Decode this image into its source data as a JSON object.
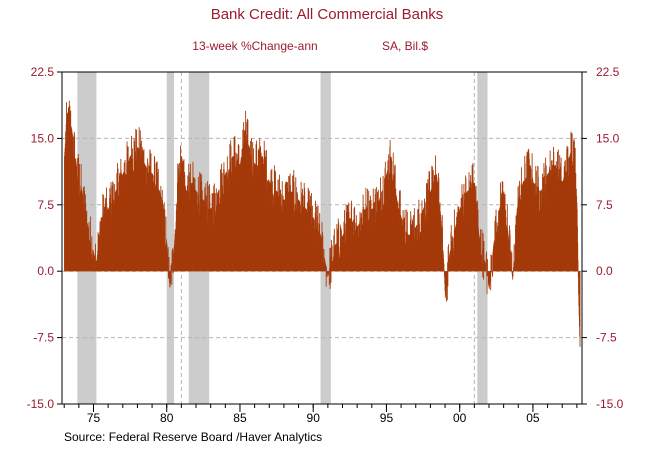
{
  "chart_data": {
    "type": "bar",
    "title": "Bank Credit: All Commercial Banks",
    "subtitle_left": "13-week %Change-ann",
    "subtitle_right": "SA, Bil.$",
    "source": "Source:  Federal Reserve Board /Haver Analytics",
    "ylim": [
      -15,
      22.5
    ],
    "xlim": [
      1972.85,
      2008.35
    ],
    "y_ticks": [
      22.5,
      15.0,
      7.5,
      0.0,
      -7.5,
      -15.0
    ],
    "y_tick_labels_left": [
      "22.5",
      "15.0",
      "7.5",
      "0.0",
      "-7.5",
      "-15.0"
    ],
    "y_tick_labels_right": [
      "22.5",
      "15.0",
      "7.5",
      "0.0",
      "-7.5",
      "-15.0"
    ],
    "x_ticks": [
      1975,
      1980,
      1985,
      1990,
      1995,
      2000,
      2005
    ],
    "x_tick_labels": [
      "75",
      "80",
      "85",
      "90",
      "95",
      "00",
      "05"
    ],
    "grid": "dashed horizontal at y ticks, dashed vertical at 1981 and 2001",
    "bar_color": "#a53a0a",
    "recession_color": "#cccccc",
    "recessions": [
      [
        1973.9,
        1975.2
      ],
      [
        1980.0,
        1980.5
      ],
      [
        1981.5,
        1982.9
      ],
      [
        1990.5,
        1991.2
      ],
      [
        2001.2,
        2001.9
      ]
    ],
    "series": [
      {
        "anchors": [
          [
            1973.0,
            13
          ],
          [
            1973.2,
            18
          ],
          [
            1973.5,
            16
          ],
          [
            1973.8,
            12
          ],
          [
            1974.2,
            9
          ],
          [
            1974.6,
            5
          ],
          [
            1975.0,
            2
          ],
          [
            1975.2,
            1
          ],
          [
            1975.5,
            6
          ],
          [
            1976.0,
            7
          ],
          [
            1976.5,
            9
          ],
          [
            1977.0,
            11
          ],
          [
            1977.5,
            13
          ],
          [
            1978.0,
            14
          ],
          [
            1978.5,
            12
          ],
          [
            1979.0,
            11
          ],
          [
            1979.5,
            9
          ],
          [
            1980.0,
            3
          ],
          [
            1980.2,
            -2
          ],
          [
            1980.5,
            3
          ],
          [
            1980.8,
            12
          ],
          [
            1981.0,
            13
          ],
          [
            1981.3,
            9
          ],
          [
            1981.7,
            10
          ],
          [
            1982.0,
            9
          ],
          [
            1982.5,
            8
          ],
          [
            1983.0,
            7
          ],
          [
            1983.5,
            9
          ],
          [
            1984.0,
            11
          ],
          [
            1984.5,
            13
          ],
          [
            1985.0,
            12
          ],
          [
            1985.3,
            16
          ],
          [
            1985.6,
            14
          ],
          [
            1986.0,
            12
          ],
          [
            1986.5,
            13
          ],
          [
            1987.0,
            10
          ],
          [
            1987.5,
            9
          ],
          [
            1988.0,
            8
          ],
          [
            1988.5,
            9
          ],
          [
            1989.0,
            8
          ],
          [
            1989.5,
            7
          ],
          [
            1990.0,
            6
          ],
          [
            1990.5,
            4
          ],
          [
            1990.8,
            1
          ],
          [
            1991.0,
            -0.5
          ],
          [
            1991.5,
            3
          ],
          [
            1992.0,
            4
          ],
          [
            1992.5,
            6
          ],
          [
            1993.0,
            5
          ],
          [
            1993.5,
            7
          ],
          [
            1994.0,
            7
          ],
          [
            1994.5,
            8
          ],
          [
            1995.0,
            11
          ],
          [
            1995.3,
            13
          ],
          [
            1995.7,
            8
          ],
          [
            1996.0,
            6
          ],
          [
            1996.5,
            4
          ],
          [
            1997.0,
            5
          ],
          [
            1997.5,
            7
          ],
          [
            1998.0,
            9
          ],
          [
            1998.4,
            11
          ],
          [
            1998.7,
            6
          ],
          [
            1998.9,
            1
          ],
          [
            1999.0,
            -3
          ],
          [
            1999.3,
            2
          ],
          [
            1999.7,
            5
          ],
          [
            2000.0,
            7
          ],
          [
            2000.5,
            9
          ],
          [
            2001.0,
            10
          ],
          [
            2001.3,
            4
          ],
          [
            2001.7,
            1
          ],
          [
            2002.0,
            -2
          ],
          [
            2002.3,
            3
          ],
          [
            2002.7,
            7
          ],
          [
            2003.0,
            9
          ],
          [
            2003.3,
            4
          ],
          [
            2003.6,
            -1
          ],
          [
            2003.9,
            7
          ],
          [
            2004.3,
            10
          ],
          [
            2004.8,
            12
          ],
          [
            2005.0,
            10
          ],
          [
            2005.5,
            9
          ],
          [
            2006.0,
            11
          ],
          [
            2006.5,
            12
          ],
          [
            2007.0,
            10
          ],
          [
            2007.5,
            13
          ],
          [
            2007.8,
            15
          ],
          [
            2008.0,
            7
          ],
          [
            2008.1,
            -3
          ],
          [
            2008.2,
            -9
          ]
        ]
      }
    ]
  }
}
